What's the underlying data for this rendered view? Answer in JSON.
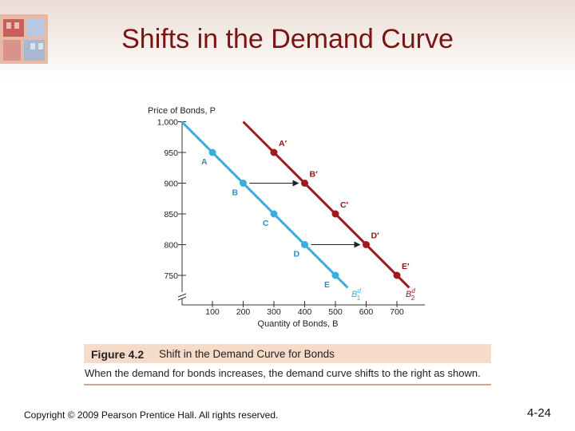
{
  "slide": {
    "title": "Shifts in the Demand Curve",
    "copyright": "Copyright © 2009 Pearson Prentice Hall. All rights reserved.",
    "slide_number": "4-24"
  },
  "figure": {
    "number": "Figure 4.2",
    "title": "Shift in the Demand Curve for Bonds",
    "caption": "When the demand for bonds increases, the demand curve shifts to the right as shown."
  },
  "colors": {
    "title": "#7a1414",
    "curve_b1": "#3aaee0",
    "curve_b2": "#a0191d",
    "figure_band": "#f6dcc8"
  },
  "chart_data": {
    "type": "line",
    "xlabel": "Quantity of Bonds, B",
    "ylabel": "Price of Bonds, P",
    "x_ticks": [
      100,
      200,
      300,
      400,
      500,
      600,
      700
    ],
    "y_ticks": [
      750,
      800,
      850,
      900,
      950,
      1000
    ],
    "y_tick_labels": [
      "750",
      "800",
      "850",
      "900",
      "950",
      "1,000"
    ],
    "series": [
      {
        "name": "B1d",
        "color": "#3aaee0",
        "points": [
          {
            "label": "A",
            "x": 100,
            "y": 950
          },
          {
            "label": "B",
            "x": 200,
            "y": 900
          },
          {
            "label": "C",
            "x": 300,
            "y": 850
          },
          {
            "label": "D",
            "x": 400,
            "y": 800
          },
          {
            "label": "E",
            "x": 500,
            "y": 750
          }
        ]
      },
      {
        "name": "B2d",
        "color": "#a0191d",
        "points": [
          {
            "label": "A′",
            "x": 300,
            "y": 950
          },
          {
            "label": "B′",
            "x": 400,
            "y": 900
          },
          {
            "label": "C′",
            "x": 500,
            "y": 850
          },
          {
            "label": "D′",
            "x": 600,
            "y": 800
          },
          {
            "label": "E′",
            "x": 700,
            "y": 750
          }
        ]
      }
    ],
    "arrows": [
      {
        "y": 900,
        "from_x": 200,
        "to_x": 400
      },
      {
        "y": 800,
        "from_x": 400,
        "to_x": 600
      }
    ]
  }
}
